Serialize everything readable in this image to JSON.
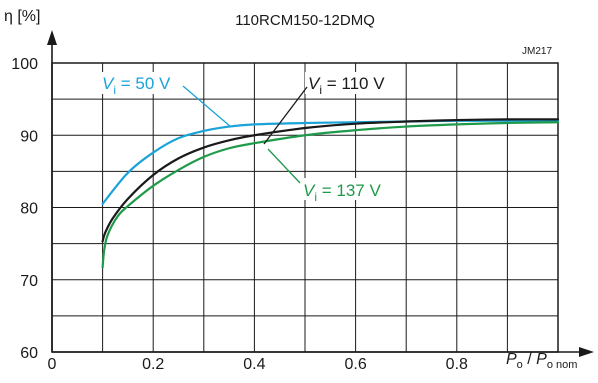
{
  "chart_data": {
    "type": "line",
    "title": "110RCM150-12DMQ",
    "code": "JM217",
    "ylabel": "η [%]",
    "xlabel_parts": {
      "p1": "P",
      "s1": "o",
      "slash": " / ",
      "p2": "P",
      "s2": "o nom"
    },
    "xlim": [
      0,
      1
    ],
    "ylim": [
      60,
      100
    ],
    "x_ticks": [
      "0",
      "0.2",
      "0.4",
      "0.6",
      "0.8"
    ],
    "y_ticks": [
      "60",
      "70",
      "80",
      "90",
      "100"
    ],
    "x_grid_step": 0.1,
    "y_grid_step": 5,
    "grid": true,
    "series": [
      {
        "name": "Vi = 50 V",
        "label_parts": {
          "v": "V",
          "sub": "i",
          "rest": " = 50 V"
        },
        "color": "#1ba3d9",
        "x": [
          0.1,
          0.15,
          0.2,
          0.25,
          0.3,
          0.35,
          0.4,
          0.5,
          0.6,
          0.7,
          0.8,
          0.9,
          1.0
        ],
        "y": [
          80.5,
          84.8,
          87.6,
          89.6,
          90.6,
          91.2,
          91.5,
          91.7,
          91.8,
          91.9,
          92.0,
          92.0,
          92.0
        ]
      },
      {
        "name": "Vi = 110 V",
        "label_parts": {
          "v": "V",
          "sub": "i",
          "rest": " = 110 V"
        },
        "color": "#1a1a1a",
        "x": [
          0.1,
          0.105,
          0.12,
          0.15,
          0.2,
          0.25,
          0.3,
          0.35,
          0.4,
          0.5,
          0.6,
          0.7,
          0.8,
          0.9,
          1.0
        ],
        "y": [
          75.3,
          76.5,
          78.5,
          81.2,
          84.5,
          86.8,
          88.3,
          89.3,
          90.0,
          91.0,
          91.6,
          91.9,
          92.1,
          92.2,
          92.2
        ]
      },
      {
        "name": "Vi = 137 V",
        "label_parts": {
          "v": "V",
          "sub": "i",
          "rest": " = 137 V"
        },
        "color": "#1f9a4a",
        "x": [
          0.1,
          0.103,
          0.11,
          0.13,
          0.15,
          0.2,
          0.25,
          0.3,
          0.35,
          0.4,
          0.5,
          0.6,
          0.7,
          0.8,
          0.9,
          1.0
        ],
        "y": [
          71.7,
          74.0,
          76.2,
          78.8,
          80.2,
          83.0,
          85.2,
          87.0,
          88.2,
          88.9,
          90.0,
          90.7,
          91.2,
          91.5,
          91.7,
          91.8
        ]
      }
    ]
  }
}
